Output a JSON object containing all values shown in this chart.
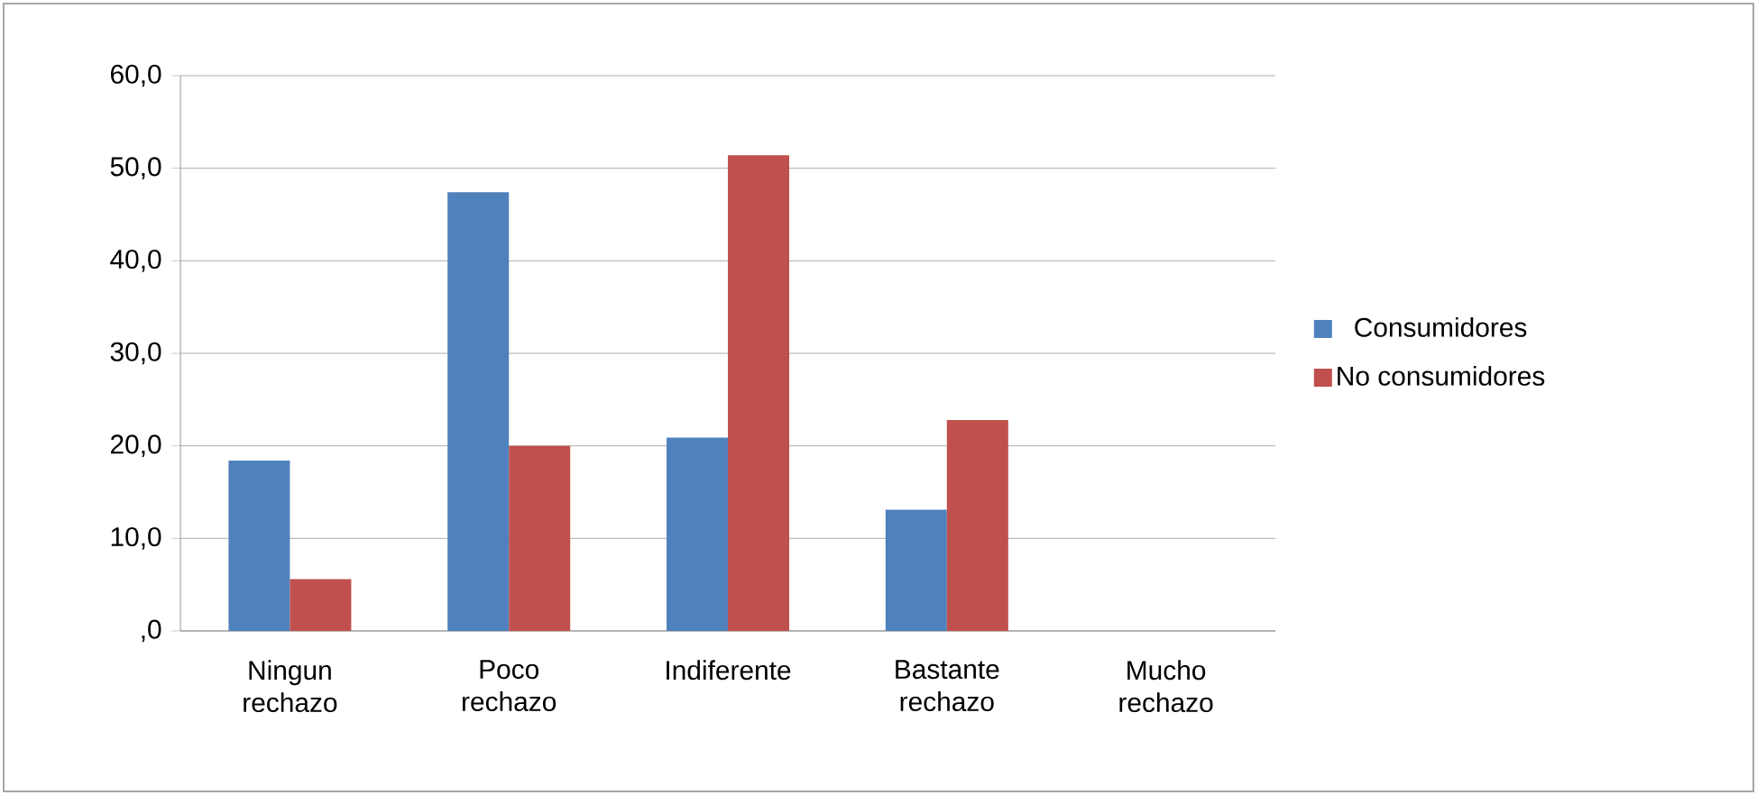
{
  "chart_data": {
    "type": "bar",
    "categories": [
      "Ningun rechazo",
      "Poco rechazo",
      "Indiferente",
      "Bastante rechazo",
      "Mucho rechazo"
    ],
    "series": [
      {
        "name": "Consumidores",
        "color": "#4f81bd",
        "values": [
          18.4,
          47.4,
          20.9,
          13.1,
          0
        ]
      },
      {
        "name": "No consumidores",
        "color": "#c0504d",
        "values": [
          5.6,
          20.0,
          51.4,
          22.8,
          0
        ]
      }
    ],
    "ylim": [
      0,
      60
    ],
    "yticks": [
      {
        "value": 0,
        "label": ",0"
      },
      {
        "value": 10,
        "label": "10,0"
      },
      {
        "value": 20,
        "label": "20,0"
      },
      {
        "value": 30,
        "label": "30,0"
      },
      {
        "value": 40,
        "label": "40,0"
      },
      {
        "value": 50,
        "label": "50,0"
      },
      {
        "value": 60,
        "label": "60,0"
      }
    ],
    "grid": "y",
    "legend": "right"
  }
}
